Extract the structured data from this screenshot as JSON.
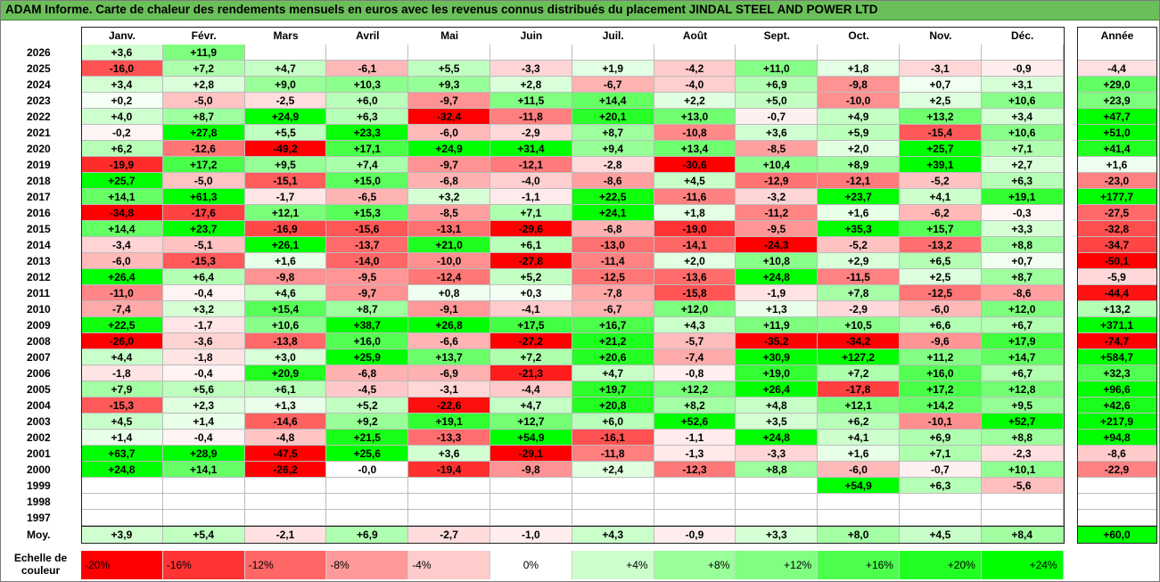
{
  "title": "ADAM Informe. Carte de chaleur des rendements mensuels en euros avec les revenus connus distribués du placement JINDAL STEEL AND POWER LTD",
  "chart_data": {
    "type": "heatmap",
    "columns": [
      "Janv.",
      "Févr.",
      "Mars",
      "Avril",
      "Mai",
      "Juin",
      "Juil.",
      "Août",
      "Sept.",
      "Oct.",
      "Nov.",
      "Déc."
    ],
    "year_header": "Année",
    "rows": [
      {
        "year": "2026",
        "months": [
          "+3,6",
          "+11,9",
          "",
          "",
          "",
          "",
          "",
          "",
          "",
          "",
          "",
          ""
        ],
        "annual": ""
      },
      {
        "year": "2025",
        "months": [
          "-16,0",
          "+7,2",
          "+4,7",
          "-6,1",
          "+5,5",
          "-3,3",
          "+1,9",
          "-4,2",
          "+11,0",
          "+1,8",
          "-3,1",
          "-0,9"
        ],
        "annual": "-4,4"
      },
      {
        "year": "2024",
        "months": [
          "+3,4",
          "+2,8",
          "+9,0",
          "+10,3",
          "+9,3",
          "+2,8",
          "-6,7",
          "-4,0",
          "+6,9",
          "-9,8",
          "+0,7",
          "+3,1"
        ],
        "annual": "+29,0"
      },
      {
        "year": "2023",
        "months": [
          "+0,2",
          "-5,0",
          "-2,5",
          "+6,0",
          "-9,7",
          "+11,5",
          "+14,4",
          "+2,2",
          "+5,0",
          "-10,0",
          "+2,5",
          "+10,6"
        ],
        "annual": "+23,9"
      },
      {
        "year": "2022",
        "months": [
          "+4,0",
          "+8,7",
          "+24,9",
          "+6,3",
          "-32,4",
          "-11,8",
          "+20,1",
          "+13,0",
          "-0,7",
          "+4,9",
          "+13,2",
          "+3,4"
        ],
        "annual": "+47,7"
      },
      {
        "year": "2021",
        "months": [
          "-0,2",
          "+27,8",
          "+5,5",
          "+23,3",
          "-6,0",
          "-2,9",
          "+8,7",
          "-10,8",
          "+3,6",
          "+5,9",
          "-15,4",
          "+10,6"
        ],
        "annual": "+51,0"
      },
      {
        "year": "2020",
        "months": [
          "+6,2",
          "-12,6",
          "-49,2",
          "+17,1",
          "+24,9",
          "+31,4",
          "+9,4",
          "+13,4",
          "-8,5",
          "+2,0",
          "+25,7",
          "+7,1"
        ],
        "annual": "+41,4"
      },
      {
        "year": "2019",
        "months": [
          "-19,9",
          "+17,2",
          "+9,5",
          "+7,4",
          "-9,7",
          "-12,1",
          "-2,8",
          "-30,6",
          "+10,4",
          "+8,9",
          "+39,1",
          "+2,7"
        ],
        "annual": "+1,6"
      },
      {
        "year": "2018",
        "months": [
          "+25,7",
          "-5,0",
          "-15,1",
          "+15,0",
          "-6,8",
          "-4,0",
          "-8,6",
          "+4,5",
          "-12,9",
          "-12,1",
          "-5,2",
          "+6,3"
        ],
        "annual": "-23,0"
      },
      {
        "year": "2017",
        "months": [
          "+14,1",
          "+61,3",
          "-1,7",
          "-6,5",
          "+3,2",
          "-1,1",
          "+22,5",
          "-11,6",
          "-3,2",
          "+23,7",
          "+4,1",
          "+19,1"
        ],
        "annual": "+177,7"
      },
      {
        "year": "2016",
        "months": [
          "-34,8",
          "-17,6",
          "+12,1",
          "+15,3",
          "-8,5",
          "+7,1",
          "+24,1",
          "+1,8",
          "-11,2",
          "+1,6",
          "-6,2",
          "-0,3"
        ],
        "annual": "-27,5"
      },
      {
        "year": "2015",
        "months": [
          "+14,4",
          "+23,7",
          "-16,9",
          "-15,6",
          "-13,1",
          "-29,6",
          "-6,8",
          "-19,0",
          "-9,5",
          "+35,3",
          "+15,7",
          "+3,3"
        ],
        "annual": "-32,8"
      },
      {
        "year": "2014",
        "months": [
          "-3,4",
          "-5,1",
          "+26,1",
          "-13,7",
          "+21,0",
          "+6,1",
          "-13,0",
          "-14,1",
          "-24,3",
          "-5,2",
          "-13,2",
          "+8,8"
        ],
        "annual": "-34,7"
      },
      {
        "year": "2013",
        "months": [
          "-6,0",
          "-15,3",
          "+1,6",
          "-14,0",
          "-10,0",
          "-27,8",
          "-11,4",
          "+2,0",
          "+10,8",
          "+2,9",
          "+6,5",
          "+0,7"
        ],
        "annual": "-50,1"
      },
      {
        "year": "2012",
        "months": [
          "+26,4",
          "+6,4",
          "-9,8",
          "-9,5",
          "-12,4",
          "+5,2",
          "-12,5",
          "-13,6",
          "+24,8",
          "-11,5",
          "+2,5",
          "+8,7"
        ],
        "annual": "-5,9"
      },
      {
        "year": "2011",
        "months": [
          "-11,0",
          "-0,4",
          "+4,6",
          "-9,7",
          "+0,8",
          "+0,3",
          "-7,8",
          "-15,8",
          "-1,9",
          "+7,8",
          "-12,5",
          "-8,6"
        ],
        "annual": "-44,4"
      },
      {
        "year": "2010",
        "months": [
          "-7,4",
          "+3,2",
          "+15,4",
          "+8,7",
          "-9,1",
          "-4,1",
          "-6,7",
          "+12,0",
          "+1,3",
          "-2,9",
          "-6,0",
          "+12,0"
        ],
        "annual": "+13,2"
      },
      {
        "year": "2009",
        "months": [
          "+22,5",
          "-1,7",
          "+10,6",
          "+38,7",
          "+26,8",
          "+17,5",
          "+16,7",
          "+4,3",
          "+11,9",
          "+10,5",
          "+6,6",
          "+6,7"
        ],
        "annual": "+371,1"
      },
      {
        "year": "2008",
        "months": [
          "-26,0",
          "-3,6",
          "-13,8",
          "+16,0",
          "-6,6",
          "-27,2",
          "+21,2",
          "-5,7",
          "-35,2",
          "-34,2",
          "-9,6",
          "+17,9"
        ],
        "annual": "-74,7"
      },
      {
        "year": "2007",
        "months": [
          "+4,4",
          "-1,8",
          "+3,0",
          "+25,9",
          "+13,7",
          "+7,2",
          "+20,6",
          "-7,4",
          "+30,9",
          "+127,2",
          "+11,2",
          "+14,7"
        ],
        "annual": "+584,7"
      },
      {
        "year": "2006",
        "months": [
          "-1,8",
          "-0,4",
          "+20,9",
          "-6,8",
          "-6,9",
          "-21,3",
          "+4,7",
          "-0,8",
          "+19,0",
          "+7,2",
          "+16,0",
          "+6,7"
        ],
        "annual": "+32,3"
      },
      {
        "year": "2005",
        "months": [
          "+7,9",
          "+5,6",
          "+6,1",
          "-4,5",
          "-3,1",
          "-4,4",
          "+19,7",
          "+12,2",
          "+26,4",
          "-17,8",
          "+17,2",
          "+12,8"
        ],
        "annual": "+96,6"
      },
      {
        "year": "2004",
        "months": [
          "-15,3",
          "+2,3",
          "+1,3",
          "+5,2",
          "-22,6",
          "+4,7",
          "+20,8",
          "+8,2",
          "+4,8",
          "+12,1",
          "+14,2",
          "+9,5"
        ],
        "annual": "+42,6"
      },
      {
        "year": "2003",
        "months": [
          "+4,5",
          "+1,4",
          "-14,6",
          "+9,2",
          "+19,1",
          "+12,7",
          "+6,0",
          "+52,6",
          "+3,5",
          "+6,2",
          "-10,1",
          "+52,7"
        ],
        "annual": "+217,9"
      },
      {
        "year": "2002",
        "months": [
          "+1,4",
          "-0,4",
          "-4,8",
          "+21,5",
          "-13,3",
          "+54,9",
          "-16,1",
          "-1,1",
          "+24,8",
          "+4,1",
          "+6,9",
          "+8,8"
        ],
        "annual": "+94,8"
      },
      {
        "year": "2001",
        "months": [
          "+63,7",
          "+28,9",
          "-47,5",
          "+25,6",
          "+3,6",
          "-29,1",
          "-11,8",
          "-1,3",
          "-3,3",
          "+1,6",
          "+7,1",
          "-2,3"
        ],
        "annual": "-8,6"
      },
      {
        "year": "2000",
        "months": [
          "+24,8",
          "+14,1",
          "-26,2",
          "-0,0",
          "-19,4",
          "-9,8",
          "+2,4",
          "-12,3",
          "+8,8",
          "-6,0",
          "-0,7",
          "+10,1"
        ],
        "annual": "-22,9"
      },
      {
        "year": "1999",
        "months": [
          "",
          "",
          "",
          "",
          "",
          "",
          "",
          "",
          "",
          "+54,9",
          "+6,3",
          "-5,6"
        ],
        "annual": ""
      },
      {
        "year": "1998",
        "months": [
          "",
          "",
          "",
          "",
          "",
          "",
          "",
          "",
          "",
          "",
          "",
          ""
        ],
        "annual": ""
      },
      {
        "year": "1997",
        "months": [
          "",
          "",
          "",
          "",
          "",
          "",
          "",
          "",
          "",
          "",
          "",
          ""
        ],
        "annual": ""
      }
    ],
    "average": {
      "label": "Moy.",
      "months": [
        "+3,9",
        "+5,4",
        "-2,1",
        "+6,9",
        "-2,7",
        "-1,0",
        "+4,3",
        "-0,9",
        "+3,3",
        "+8,0",
        "+4,5",
        "+8,4"
      ],
      "annual": "+60,0"
    },
    "scale": {
      "label_line1": "Echelle de",
      "label_line2": "couleur",
      "labels": [
        "-20%",
        "-16%",
        "-12%",
        "-8%",
        "-4%",
        "0%",
        "+4%",
        "+8%",
        "+12%",
        "+16%",
        "+20%",
        "+24%"
      ],
      "colors": [
        "#ff0000",
        "#ff3333",
        "#ff6666",
        "#ff9999",
        "#ffcccc",
        "#ffffff",
        "#ccffcc",
        "#99ff99",
        "#80ff80",
        "#4dff4d",
        "#22ff22",
        "#00ff00"
      ]
    }
  }
}
